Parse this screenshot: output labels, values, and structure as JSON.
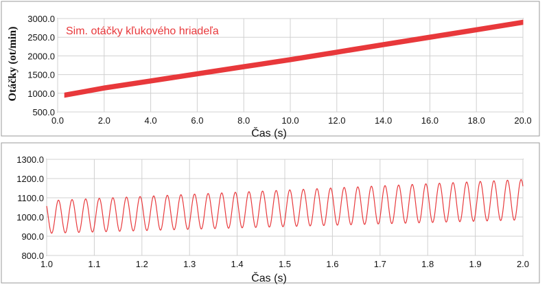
{
  "chart_data": [
    {
      "type": "line",
      "legend": "Sim. otáčky kľukového hriadeľa",
      "legend_position": "top-left",
      "xlabel": "Čas (s)",
      "ylabel": "Otáčky (ot/min)",
      "xlim": [
        0.0,
        20.0
      ],
      "ylim": [
        500.0,
        3000.0
      ],
      "xticks": [
        "0.0",
        "2.0",
        "4.0",
        "6.0",
        "8.0",
        "10.0",
        "12.0",
        "14.0",
        "16.0",
        "18.0",
        "20.0"
      ],
      "yticks": [
        "500.0",
        "1000.0",
        "1500.0",
        "2000.0",
        "2500.0",
        "3000.0"
      ],
      "grid": true,
      "color": "#e8383b",
      "series": [
        {
          "x": [
            0.3,
            2.0,
            4.0,
            6.0,
            8.0,
            10.0,
            12.0,
            14.0,
            16.0,
            18.0,
            20.0
          ],
          "y": [
            950,
            1140,
            1330,
            1520,
            1710,
            1900,
            2100,
            2300,
            2500,
            2700,
            2900
          ],
          "band_halfwidth": 60
        }
      ]
    },
    {
      "type": "line",
      "xlabel": "Čas (s)",
      "xlim": [
        1.0,
        2.0
      ],
      "ylim": [
        800.0,
        1300.0
      ],
      "xticks": [
        "1.0",
        "1.1",
        "1.2",
        "1.3",
        "1.4",
        "1.5",
        "1.6",
        "1.7",
        "1.8",
        "1.9",
        "2.0"
      ],
      "yticks": [
        "800.0",
        "900.0",
        "1000.0",
        "1100.0",
        "1200.0",
        "1300.0"
      ],
      "grid": true,
      "color": "#e8383b",
      "series": [
        {
          "mean": [
            1.0,
            1000,
            2.0,
            1090
          ],
          "amplitude": [
            1.0,
            85,
            2.0,
            105
          ],
          "period": 0.02857,
          "phase_start_y": 1040,
          "first_min": [
            1.0105,
            910
          ]
        }
      ]
    }
  ]
}
